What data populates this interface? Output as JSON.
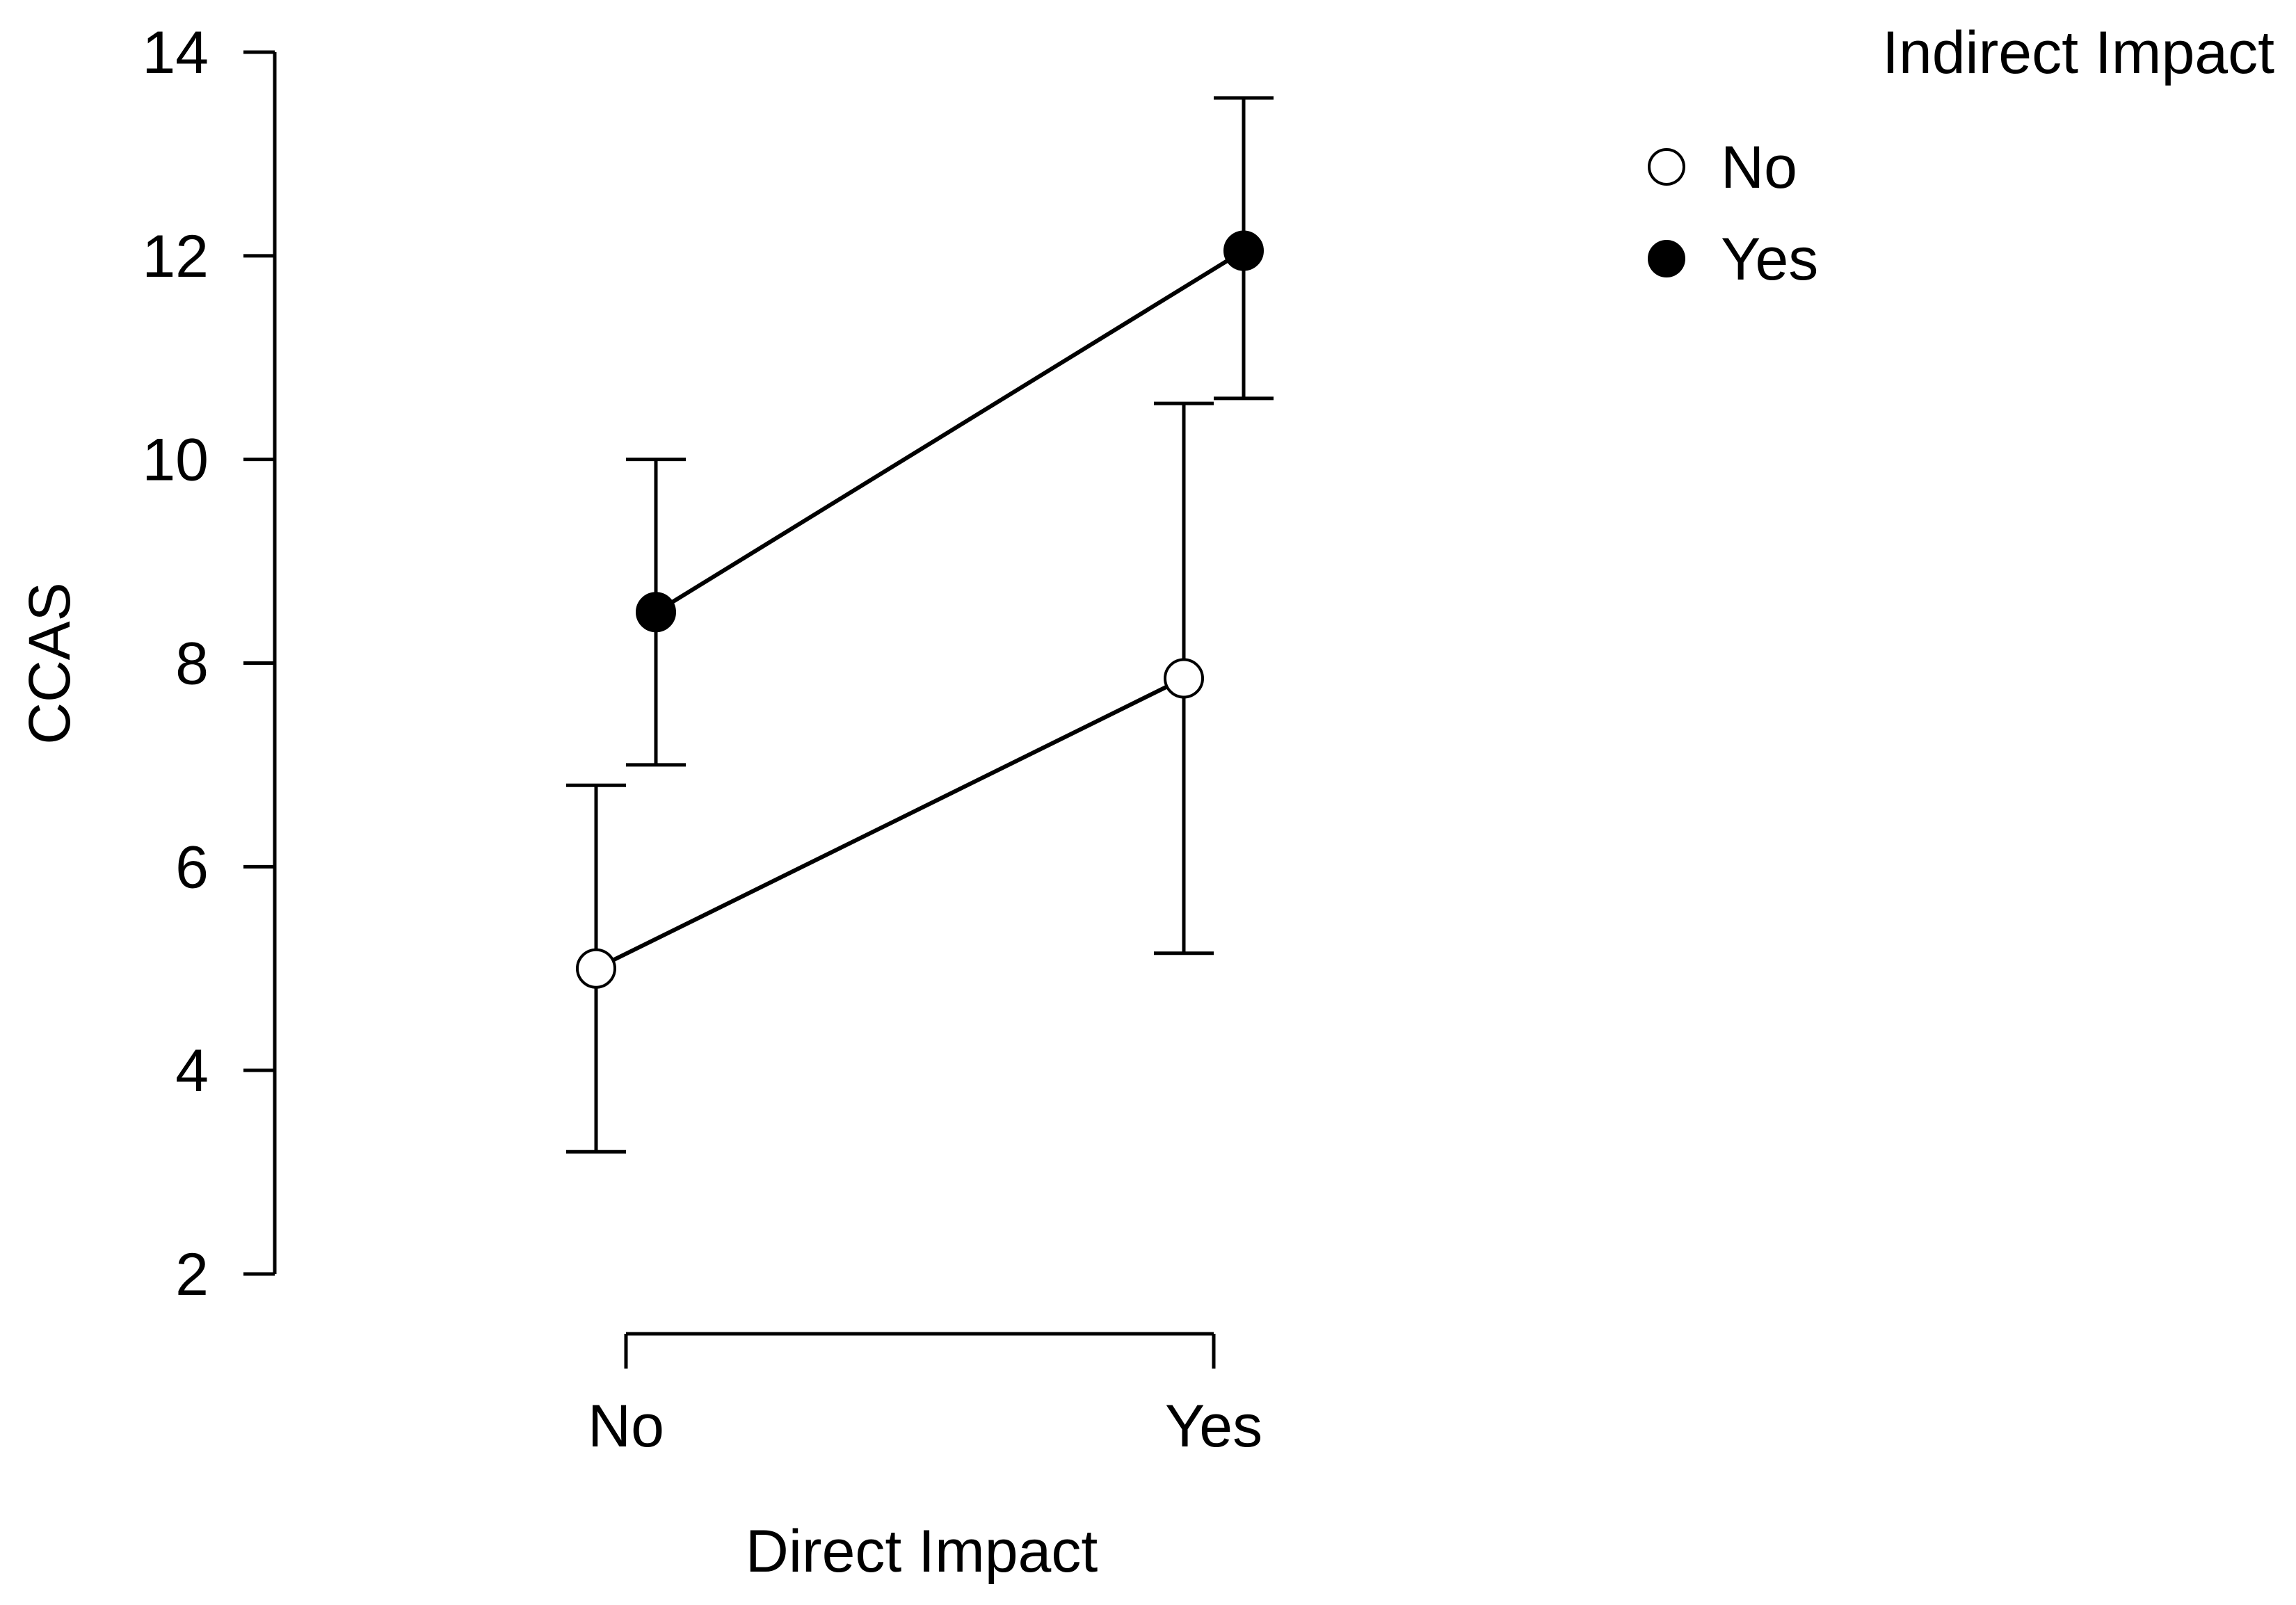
{
  "chart_data": {
    "type": "line",
    "title": "",
    "xlabel": "Direct Impact",
    "ylabel": "CCAS",
    "categories": [
      "No",
      "Yes"
    ],
    "ylim": [
      2,
      14
    ],
    "yticks": [
      2,
      4,
      6,
      8,
      10,
      12,
      14
    ],
    "grid": false,
    "legend": {
      "title": "Indirect Impact",
      "placement": "top-right",
      "entries": [
        "No",
        "Yes"
      ]
    },
    "series": [
      {
        "name": "No",
        "marker": "open-circle",
        "values": [
          5.0,
          7.85
        ],
        "ci_lower": [
          3.2,
          5.15
        ],
        "ci_upper": [
          6.8,
          10.55
        ]
      },
      {
        "name": "Yes",
        "marker": "filled-circle",
        "values": [
          8.5,
          12.05
        ],
        "ci_lower": [
          7.0,
          10.6
        ],
        "ci_upper": [
          10.0,
          13.55
        ]
      }
    ],
    "colors": {
      "line": "#000000",
      "open_marker_fill": "#ffffff",
      "filled_marker_fill": "#000000"
    }
  }
}
